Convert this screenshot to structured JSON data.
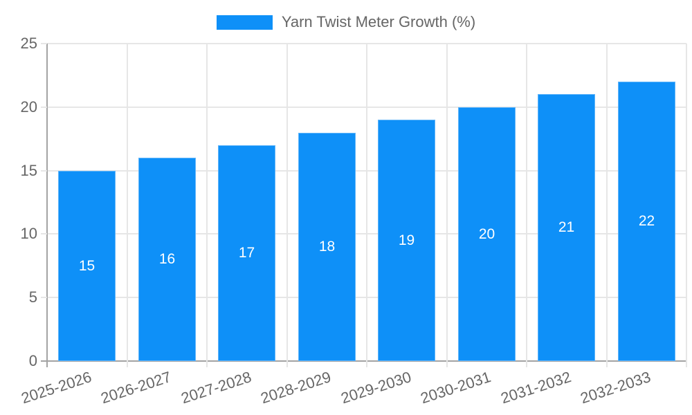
{
  "chart_data": {
    "type": "bar",
    "title": "",
    "legend_label": "Yarn Twist Meter Growth (%)",
    "legend_position": "top-center",
    "categories": [
      "2025-2026",
      "2026-2027",
      "2027-2028",
      "2028-2029",
      "2029-2030",
      "2030-2031",
      "2031-2032",
      "2032-2033"
    ],
    "values": [
      15,
      16,
      17,
      18,
      19,
      20,
      21,
      22
    ],
    "bar_labels": [
      "15",
      "16",
      "17",
      "18",
      "19",
      "20",
      "21",
      "22"
    ],
    "xlabel": "",
    "ylabel": "",
    "ylim": [
      0,
      25
    ],
    "yticks": [
      0,
      5,
      10,
      15,
      20,
      25
    ],
    "grid": true,
    "x_tick_rotation_deg": -18,
    "colors": {
      "bar_fill": "#0e90f8",
      "bar_value_label": "#ffffff",
      "grid_line": "#e6e6e6",
      "axis_line": "#a3a3a3",
      "tick_label": "#666666",
      "legend_text": "#666666",
      "background": "#ffffff"
    }
  }
}
